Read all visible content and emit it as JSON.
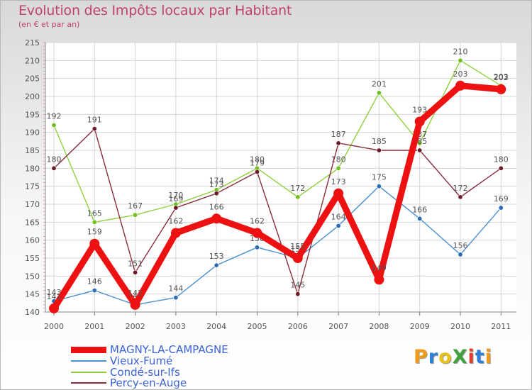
{
  "chart_data": {
    "type": "line",
    "title": "Evolution des Impôts locaux par Habitant",
    "subtitle": "(en € et par an)",
    "xlabel": "",
    "ylabel": "",
    "ylim": [
      140,
      215
    ],
    "yticks": [
      140,
      145,
      150,
      155,
      160,
      165,
      170,
      175,
      180,
      185,
      190,
      195,
      200,
      205,
      210,
      215
    ],
    "categories": [
      "2000",
      "2001",
      "2002",
      "2003",
      "2004",
      "2005",
      "2006",
      "2007",
      "2008",
      "2009",
      "2010",
      "2011"
    ],
    "grid": true,
    "legend_position": "bottom-left",
    "series": [
      {
        "name": "Vieux-Fumé",
        "color": "#4a8fd0",
        "point_color": "#2b6cb4",
        "values": [
          143,
          146,
          142,
          144,
          153,
          158,
          155,
          164,
          175,
          166,
          156,
          169
        ],
        "labels": [
          "143",
          "146",
          "142",
          "144",
          "153",
          "158",
          "155",
          "164",
          "175",
          "166",
          "156",
          "169"
        ]
      },
      {
        "name": "Condé-sur-Ifs",
        "color": "#8fd13c",
        "point_color": "#6fbf1f",
        "values": [
          192,
          165,
          167,
          170,
          174,
          180,
          172,
          180,
          201,
          187,
          210,
          203
        ],
        "labels": [
          "192",
          "165",
          "167",
          "170",
          "174",
          "180",
          "172",
          "180",
          "201",
          "187",
          "210",
          "203"
        ]
      },
      {
        "name": "Percy-en-Auge",
        "color": "#8a2e3d",
        "point_color": "#6b1c28",
        "values": [
          180,
          191,
          151,
          169,
          173,
          179,
          145,
          187,
          185,
          185,
          172,
          180
        ],
        "labels": [
          "180",
          "191",
          "151",
          "169",
          "173",
          "179",
          "145",
          "187",
          "185",
          "185",
          "172",
          "180"
        ]
      },
      {
        "name": "MAGNY-LA-CAMPAGNE",
        "color": "#ee1111",
        "point_color": "#ee1111",
        "highlight": true,
        "values": [
          141,
          159,
          142,
          162,
          166,
          162,
          155,
          173,
          149,
          193,
          203,
          202
        ],
        "labels": [
          "141",
          "159",
          "142",
          "162",
          "166",
          "162",
          "155",
          "173",
          "149",
          "193",
          "203",
          "202"
        ]
      }
    ]
  },
  "legend": {
    "items": [
      {
        "name": "MAGNY-LA-CAMPAGNE",
        "color": "#ee1111",
        "text_color": "#3b63d6"
      },
      {
        "name": "Vieux-Fumé",
        "color": "#4a8fd0",
        "text_color": "#3b63d6"
      },
      {
        "name": "Condé-sur-Ifs",
        "color": "#8fd13c",
        "text_color": "#3b63d6"
      },
      {
        "name": "Percy-en-Auge",
        "color": "#8a2e3d",
        "text_color": "#3b63d6"
      }
    ]
  },
  "logo": {
    "text": "ProXiti",
    "letters": [
      {
        "char": "P",
        "color": "#f09a1a"
      },
      {
        "char": "r",
        "color": "#2f7fd8"
      },
      {
        "char": "o",
        "color": "#e6c21a"
      },
      {
        "char": "X",
        "color": "#3fa23f"
      },
      {
        "char": "i",
        "color": "#e23b2b"
      },
      {
        "char": "t",
        "color": "#2f7fd8"
      },
      {
        "char": "i",
        "color": "#f09a1a"
      }
    ]
  }
}
